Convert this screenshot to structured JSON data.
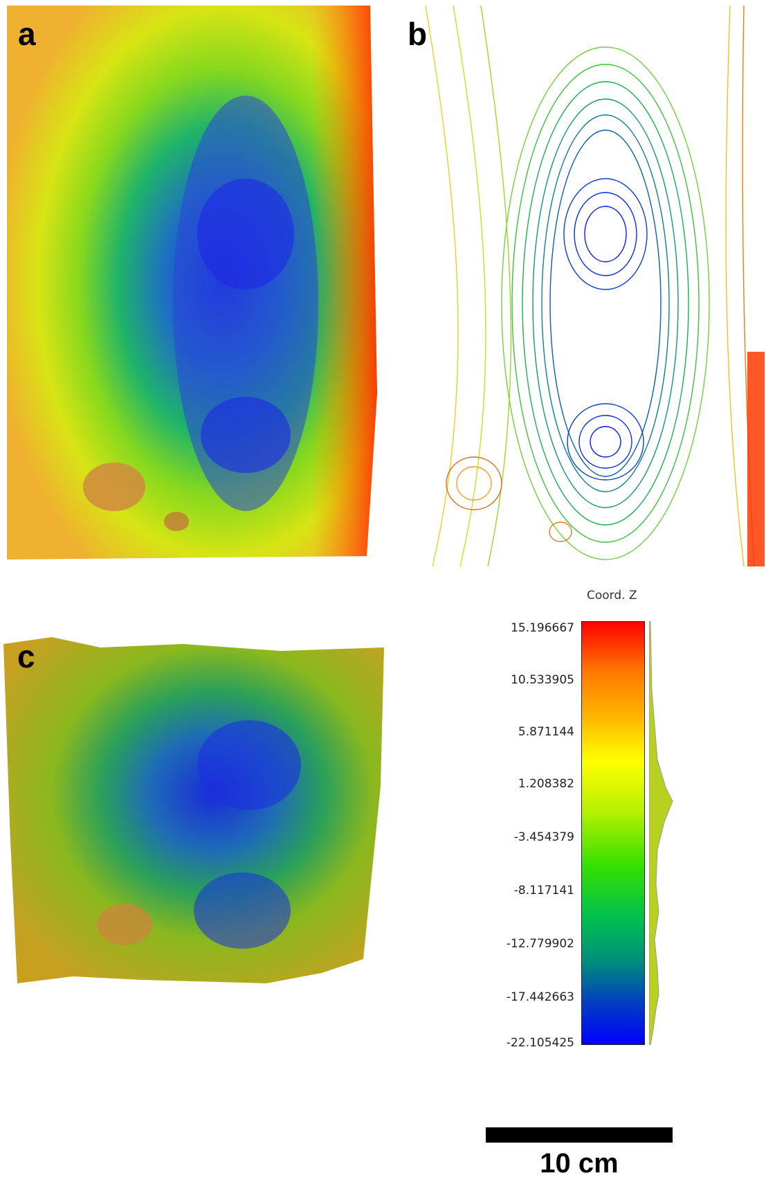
{
  "panels": {
    "a": {
      "label": "a"
    },
    "b": {
      "label": "b"
    },
    "c": {
      "label": "c"
    }
  },
  "colorbar": {
    "title": "Coord. Z",
    "ticks": [
      "15.196667",
      "10.533905",
      "5.871144",
      "1.208382",
      "-3.454379",
      "-8.117141",
      "-12.779902",
      "-17.442663",
      "-22.105425"
    ],
    "colors": [
      "#ff0000",
      "#ff7a00",
      "#ffb300",
      "#ffff00",
      "#b6f000",
      "#33e000",
      "#00c050",
      "#00907a",
      "#0040c0",
      "#0000ff"
    ]
  },
  "scale_bar": {
    "label": "10 cm"
  }
}
